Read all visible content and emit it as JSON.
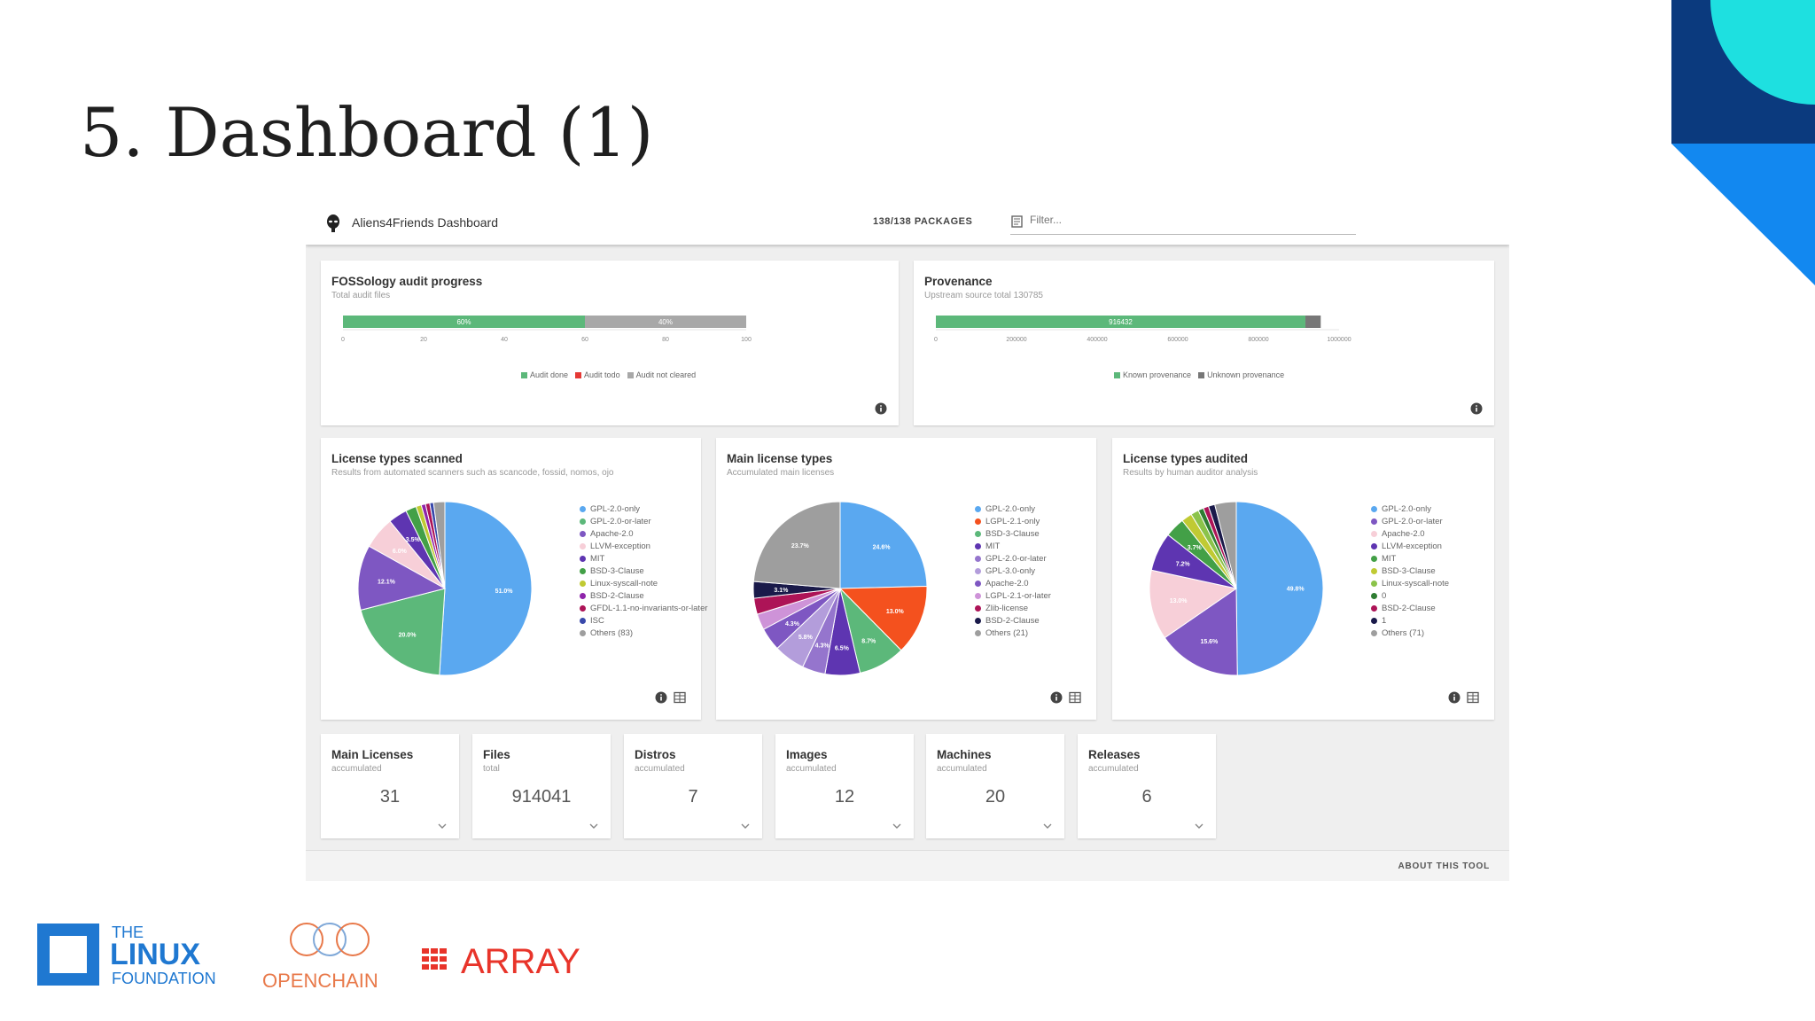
{
  "slide": {
    "title": "5. Dashboard (1)"
  },
  "colors": {
    "green": "#5cb87a",
    "gray": "#a8a8a8",
    "blue": "#5aa8f0",
    "purple": "#7e57c2",
    "pink": "#f7cfd8",
    "corner_dark": "#0b3a7e",
    "corner_mid": "#1288f0",
    "corner_cyan": "#1ee0e0",
    "lf_blue": "#1f78d1",
    "openchain_orange": "#e8794a",
    "array_red": "#e8342a"
  },
  "appbar": {
    "logo_icon": "alien-icon",
    "title": "Aliens4Friends Dashboard",
    "packages": "138/138 PACKAGES",
    "filter_icon": "filter-icon",
    "filter_placeholder": "Filter..."
  },
  "cards": {
    "audit": {
      "title": "FOSSology audit progress",
      "subtitle": "Total audit files",
      "bar_labels": [
        "60%",
        "40%"
      ],
      "ticks": [
        "0",
        "20",
        "40",
        "60",
        "80",
        "100"
      ],
      "legend": [
        "Audit done",
        "Audit todo",
        "Audit not cleared"
      ]
    },
    "provenance": {
      "title": "Provenance",
      "subtitle": "Upstream source total 130785",
      "bar_labels": [
        "916432"
      ],
      "ticks": [
        "0",
        "200000",
        "400000",
        "600000",
        "800000",
        "1000000"
      ],
      "legend": [
        "Known provenance",
        "Unknown provenance"
      ]
    },
    "scanned": {
      "title": "License types scanned",
      "subtitle": "Results from automated scanners such as scancode, fossid, nomos, ojo",
      "legend": [
        "GPL-2.0-only",
        "GPL-2.0-or-later",
        "Apache-2.0",
        "LLVM-exception",
        "MIT",
        "BSD-3-Clause",
        "Linux-syscall-note",
        "BSD-2-Clause",
        "GFDL-1.1-no-invariants-or-later",
        "ISC",
        "Others (83)"
      ]
    },
    "main": {
      "title": "Main license types",
      "subtitle": "Accumulated main licenses",
      "legend": [
        "GPL-2.0-only",
        "LGPL-2.1-only",
        "BSD-3-Clause",
        "MIT",
        "GPL-2.0-or-later",
        "GPL-3.0-only",
        "Apache-2.0",
        "LGPL-2.1-or-later",
        "Zlib-license",
        "BSD-2-Clause",
        "Others (21)"
      ]
    },
    "audited": {
      "title": "License types audited",
      "subtitle": "Results by human auditor analysis",
      "legend": [
        "GPL-2.0-only",
        "GPL-2.0-or-later",
        "Apache-2.0",
        "LLVM-exception",
        "MIT",
        "BSD-3-Clause",
        "Linux-syscall-note",
        "0",
        "BSD-2-Clause",
        "1",
        "Others (71)"
      ]
    }
  },
  "chart_data": [
    {
      "type": "bar",
      "orientation": "horizontal",
      "stacked": true,
      "title": "FOSSology audit progress",
      "categories": [
        "Total audit files"
      ],
      "series": [
        {
          "name": "Audit done",
          "values": [
            60
          ],
          "label": "60%"
        },
        {
          "name": "Audit todo",
          "values": [
            0
          ]
        },
        {
          "name": "Audit not cleared",
          "values": [
            40
          ],
          "label": "40%"
        }
      ],
      "xlim": [
        0,
        100
      ],
      "xticks": [
        0,
        20,
        40,
        60,
        80,
        100
      ]
    },
    {
      "type": "bar",
      "orientation": "horizontal",
      "stacked": true,
      "title": "Provenance",
      "categories": [
        "Upstream source total 130785"
      ],
      "series": [
        {
          "name": "Known provenance",
          "values": [
            916432
          ],
          "label": "916432"
        },
        {
          "name": "Unknown provenance",
          "values": [
            38000
          ]
        }
      ],
      "xlim": [
        0,
        1000000
      ],
      "xticks": [
        0,
        200000,
        400000,
        600000,
        800000,
        1000000
      ]
    },
    {
      "type": "pie",
      "title": "License types scanned",
      "labels": [
        "GPL-2.0-only",
        "GPL-2.0-or-later",
        "Apache-2.0",
        "LLVM-exception",
        "MIT",
        "BSD-3-Clause",
        "Linux-syscall-note",
        "BSD-2-Clause",
        "GFDL-1.1-no-invariants-or-later",
        "ISC",
        "Others (83)"
      ],
      "values": [
        51.0,
        20.0,
        12.1,
        6.0,
        3.5,
        2.0,
        1.0,
        0.8,
        0.8,
        0.7,
        2.1
      ],
      "data_labels": [
        "51.0%",
        "20.0%",
        "12.1%",
        "6.0%",
        "3.5%",
        "",
        "",
        "",
        "",
        "",
        ""
      ]
    },
    {
      "type": "pie",
      "title": "Main license types",
      "labels": [
        "GPL-2.0-only",
        "LGPL-2.1-only",
        "BSD-3-Clause",
        "MIT",
        "GPL-2.0-or-later",
        "GPL-3.0-only",
        "Apache-2.0",
        "LGPL-2.1-or-later",
        "Zlib-license",
        "BSD-2-Clause",
        "Others (21)"
      ],
      "values": [
        24.6,
        13.0,
        8.7,
        6.5,
        4.3,
        5.8,
        4.3,
        3.0,
        3.0,
        3.1,
        23.7
      ],
      "data_labels": [
        "24.6%",
        "13.0%",
        "8.7%",
        "6.5%",
        "4.3%",
        "5.8%",
        "4.3%",
        "",
        "",
        "3.1%",
        "23.7%"
      ]
    },
    {
      "type": "pie",
      "title": "License types audited",
      "labels": [
        "GPL-2.0-only",
        "GPL-2.0-or-later",
        "Apache-2.0",
        "LLVM-exception",
        "MIT",
        "BSD-3-Clause",
        "Linux-syscall-note",
        "0",
        "BSD-2-Clause",
        "1",
        "Others (71)"
      ],
      "values": [
        49.8,
        15.6,
        13.0,
        7.2,
        3.7,
        2.0,
        1.5,
        1.0,
        1.0,
        1.2,
        4.0
      ],
      "data_labels": [
        "49.8%",
        "15.6%",
        "13.0%",
        "7.2%",
        "3.7%",
        "",
        "",
        "",
        "",
        "",
        ""
      ]
    }
  ],
  "stats": [
    {
      "title": "Main Licenses",
      "sub": "accumulated",
      "value": "31"
    },
    {
      "title": "Files",
      "sub": "total",
      "value": "914041"
    },
    {
      "title": "Distros",
      "sub": "accumulated",
      "value": "7"
    },
    {
      "title": "Images",
      "sub": "accumulated",
      "value": "12"
    },
    {
      "title": "Machines",
      "sub": "accumulated",
      "value": "20"
    },
    {
      "title": "Releases",
      "sub": "accumulated",
      "value": "6"
    }
  ],
  "footer": {
    "about": "ABOUT THIS TOOL"
  },
  "logos": {
    "lf_the": "THE",
    "lf_linux": "LINUX",
    "lf_foundation": "FOUNDATION",
    "openchain": "OPENCHAIN",
    "array": "ARRAY"
  }
}
